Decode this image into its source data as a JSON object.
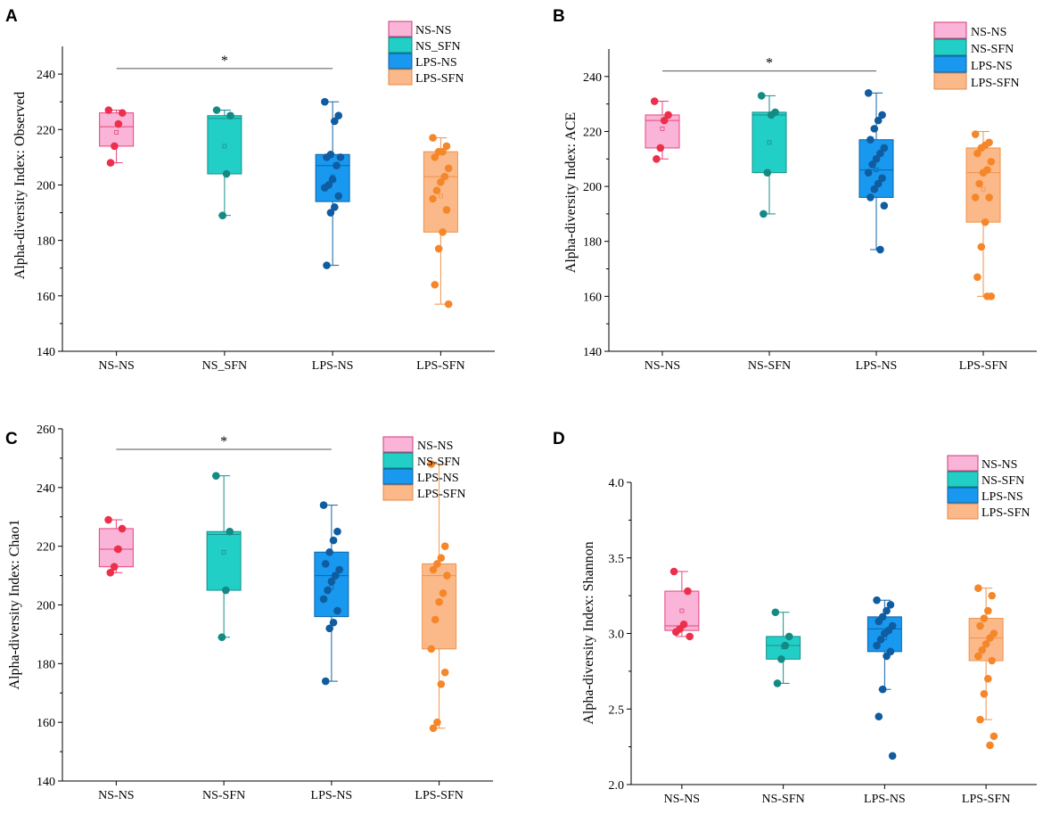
{
  "group_colors": [
    {
      "fill": "#f9b4d7",
      "stroke": "#e8437a",
      "dot": "#ec2f4a"
    },
    {
      "fill": "#22cfc6",
      "stroke": "#168f8a",
      "dot": "#138a84"
    },
    {
      "fill": "#1898ee",
      "stroke": "#0f64a8",
      "dot": "#0f5ca0"
    },
    {
      "fill": "#fbb98a",
      "stroke": "#f0924a",
      "dot": "#f5872a"
    }
  ],
  "chart_data": [
    {
      "type": "box",
      "panel_label": "A",
      "ylabel": "Alpha-diversity Index: Observed",
      "categories": [
        "NS-NS",
        "NS_SFN",
        "LPS-NS",
        "LPS-SFN"
      ],
      "legend": [
        "NS-NS",
        "NS_SFN",
        "LPS-NS",
        "LPS-SFN"
      ],
      "ylim": [
        140,
        250
      ],
      "yticks": [
        "140",
        "160",
        "180",
        "200",
        "220",
        "240"
      ],
      "significance": {
        "label": "*",
        "from": 0,
        "to": 2,
        "y": 242
      },
      "boxes": [
        {
          "q1": 214,
          "median": 221,
          "q3": 226,
          "whisker_low": 208,
          "whisker_high": 227,
          "mean": 219,
          "points": [
            227,
            226,
            222,
            214,
            208
          ]
        },
        {
          "q1": 204,
          "median": 224,
          "q3": 225,
          "whisker_low": 189,
          "whisker_high": 227,
          "mean": 214,
          "points": [
            227,
            225,
            204,
            189
          ]
        },
        {
          "q1": 194,
          "median": 207,
          "q3": 211,
          "whisker_low": 171,
          "whisker_high": 230,
          "mean": 203,
          "points": [
            230,
            225,
            223,
            211,
            210,
            210,
            207,
            202,
            200,
            199,
            196,
            192,
            190,
            171
          ]
        },
        {
          "q1": 183,
          "median": 203,
          "q3": 212,
          "whisker_low": 157,
          "whisker_high": 217,
          "mean": 196,
          "points": [
            217,
            214,
            212,
            212,
            210,
            206,
            203,
            201,
            198,
            195,
            191,
            183,
            177,
            164,
            157
          ]
        }
      ]
    },
    {
      "type": "box",
      "panel_label": "B",
      "ylabel": "Alpha-diversity Index: ACE",
      "categories": [
        "NS-NS",
        "NS-SFN",
        "LPS-NS",
        "LPS-SFN"
      ],
      "legend": [
        "NS-NS",
        "NS-SFN",
        "LPS-NS",
        "LPS-SFN"
      ],
      "ylim": [
        140,
        250
      ],
      "yticks": [
        "140",
        "160",
        "180",
        "200",
        "220",
        "240"
      ],
      "significance": {
        "label": "*",
        "from": 0,
        "to": 2,
        "y": 242
      },
      "boxes": [
        {
          "q1": 214,
          "median": 224,
          "q3": 226,
          "whisker_low": 210,
          "whisker_high": 231,
          "mean": 221,
          "points": [
            231,
            226,
            224,
            214,
            210
          ]
        },
        {
          "q1": 205,
          "median": 226,
          "q3": 227,
          "whisker_low": 190,
          "whisker_high": 233,
          "mean": 216,
          "points": [
            233,
            227,
            226,
            205,
            190
          ]
        },
        {
          "q1": 196,
          "median": 206,
          "q3": 217,
          "whisker_low": 177,
          "whisker_high": 234,
          "mean": 206,
          "points": [
            234,
            226,
            224,
            221,
            217,
            214,
            212,
            210,
            208,
            205,
            203,
            201,
            199,
            196,
            193,
            177
          ]
        },
        {
          "q1": 187,
          "median": 205,
          "q3": 214,
          "whisker_low": 160,
          "whisker_high": 220,
          "mean": 199,
          "points": [
            219,
            216,
            215,
            214,
            212,
            209,
            206,
            205,
            201,
            196,
            196,
            187,
            178,
            167,
            160,
            160
          ]
        }
      ]
    },
    {
      "type": "box",
      "panel_label": "C",
      "ylabel": "Alpha-diversity Index: Chao1",
      "categories": [
        "NS-NS",
        "NS-SFN",
        "LPS-NS",
        "LPS-SFN"
      ],
      "legend": [
        "NS-NS",
        "NS-SFN",
        "LPS-NS",
        "LPS-SFN"
      ],
      "ylim": [
        140,
        260
      ],
      "yticks": [
        "140",
        "160",
        "180",
        "200",
        "220",
        "240",
        "260"
      ],
      "significance": {
        "label": "*",
        "from": 0,
        "to": 2,
        "y": 253
      },
      "boxes": [
        {
          "q1": 213,
          "median": 219,
          "q3": 226,
          "whisker_low": 211,
          "whisker_high": 229,
          "mean": 219,
          "points": [
            229,
            226,
            219,
            213,
            211
          ]
        },
        {
          "q1": 205,
          "median": 224,
          "q3": 225,
          "whisker_low": 189,
          "whisker_high": 244,
          "mean": 218,
          "points": [
            244,
            225,
            205,
            189
          ]
        },
        {
          "q1": 196,
          "median": 210,
          "q3": 218,
          "whisker_low": 174,
          "whisker_high": 234,
          "mean": 206,
          "points": [
            234,
            225,
            222,
            218,
            214,
            212,
            210,
            208,
            205,
            202,
            198,
            194,
            192,
            174
          ]
        },
        {
          "q1": 185,
          "median": 210,
          "q3": 214,
          "whisker_low": 158,
          "whisker_high": 248,
          "mean": 201,
          "points": [
            248,
            220,
            216,
            214,
            212,
            210,
            204,
            201,
            195,
            185,
            177,
            173,
            160,
            158
          ]
        }
      ]
    },
    {
      "type": "box",
      "panel_label": "D",
      "ylabel": "Alpha-diversity Index: Shannon",
      "categories": [
        "NS-NS",
        "NS-SFN",
        "LPS-NS",
        "LPS-SFN"
      ],
      "legend": [
        "NS-NS",
        "NS-SFN",
        "LPS-NS",
        "LPS-SFN"
      ],
      "ylim": [
        2.0,
        4.0
      ],
      "yticks": [
        "2.0",
        "2.5",
        "3.0",
        "3.5",
        "4.0"
      ],
      "significance": null,
      "boxes": [
        {
          "q1": 3.02,
          "median": 3.05,
          "q3": 3.28,
          "whisker_low": 2.98,
          "whisker_high": 3.41,
          "mean": 3.15,
          "points": [
            3.41,
            3.28,
            3.06,
            3.03,
            3.01,
            2.98
          ]
        },
        {
          "q1": 2.83,
          "median": 2.92,
          "q3": 2.98,
          "whisker_low": 2.67,
          "whisker_high": 3.14,
          "mean": 2.91,
          "points": [
            3.14,
            2.98,
            2.92,
            2.83,
            2.67
          ]
        },
        {
          "q1": 2.88,
          "median": 3.03,
          "q3": 3.11,
          "whisker_low": 2.63,
          "whisker_high": 3.22,
          "mean": 2.97,
          "points": [
            3.22,
            3.19,
            3.15,
            3.11,
            3.08,
            3.05,
            3.02,
            3.0,
            2.96,
            2.92,
            2.88,
            2.85,
            2.63,
            2.45,
            2.19
          ]
        },
        {
          "q1": 2.82,
          "median": 2.97,
          "q3": 3.1,
          "whisker_low": 2.43,
          "whisker_high": 3.3,
          "mean": 2.93,
          "points": [
            3.3,
            3.25,
            3.15,
            3.1,
            3.05,
            3.0,
            2.97,
            2.93,
            2.89,
            2.85,
            2.82,
            2.7,
            2.6,
            2.43,
            2.32,
            2.26
          ]
        }
      ]
    }
  ]
}
